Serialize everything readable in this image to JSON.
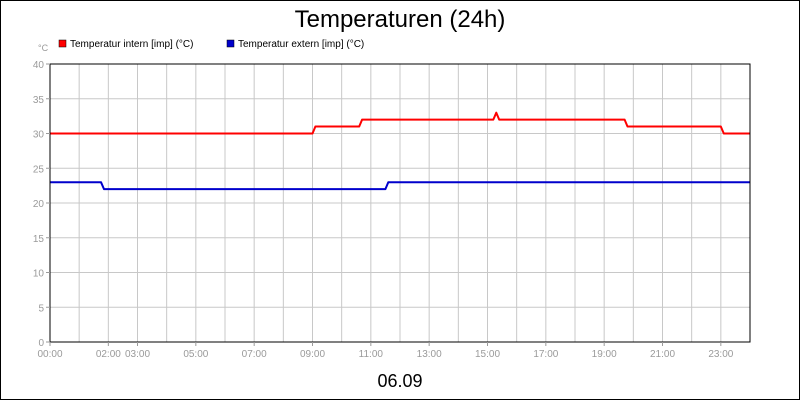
{
  "chart_data": {
    "type": "line",
    "title": "Temperaturen (24h)",
    "date_label": "06.09",
    "y_unit": "°C",
    "xlim": [
      0,
      24
    ],
    "ylim": [
      0,
      40
    ],
    "grid": true,
    "legend_position": "top-left",
    "x_ticks": [
      {
        "value": 0,
        "label": "00:00"
      },
      {
        "value": 2,
        "label": "02:00"
      },
      {
        "value": 3,
        "label": "03:00"
      },
      {
        "value": 5,
        "label": "05:00"
      },
      {
        "value": 7,
        "label": "07:00"
      },
      {
        "value": 9,
        "label": "09:00"
      },
      {
        "value": 11,
        "label": "11:00"
      },
      {
        "value": 13,
        "label": "13:00"
      },
      {
        "value": 15,
        "label": "15:00"
      },
      {
        "value": 17,
        "label": "17:00"
      },
      {
        "value": 19,
        "label": "19:00"
      },
      {
        "value": 21,
        "label": "21:00"
      },
      {
        "value": 23,
        "label": "23:00"
      }
    ],
    "y_ticks": [
      0,
      5,
      10,
      15,
      20,
      25,
      30,
      35,
      40
    ],
    "series": [
      {
        "name": "Temperatur intern [imp] (°C)",
        "color": "#ff0000",
        "x": [
          0,
          9.0,
          9.1,
          10.6,
          10.7,
          15.2,
          15.3,
          15.4,
          19.7,
          19.8,
          23.0,
          23.1,
          24
        ],
        "y": [
          30,
          30,
          31,
          31,
          32,
          32,
          33,
          32,
          32,
          31,
          31,
          30,
          30
        ]
      },
      {
        "name": "Temperatur extern [imp] (°C)",
        "color": "#0000cc",
        "x": [
          0,
          1.75,
          1.85,
          11.5,
          11.6,
          24
        ],
        "y": [
          23,
          23,
          22,
          22,
          23,
          23
        ]
      }
    ]
  }
}
